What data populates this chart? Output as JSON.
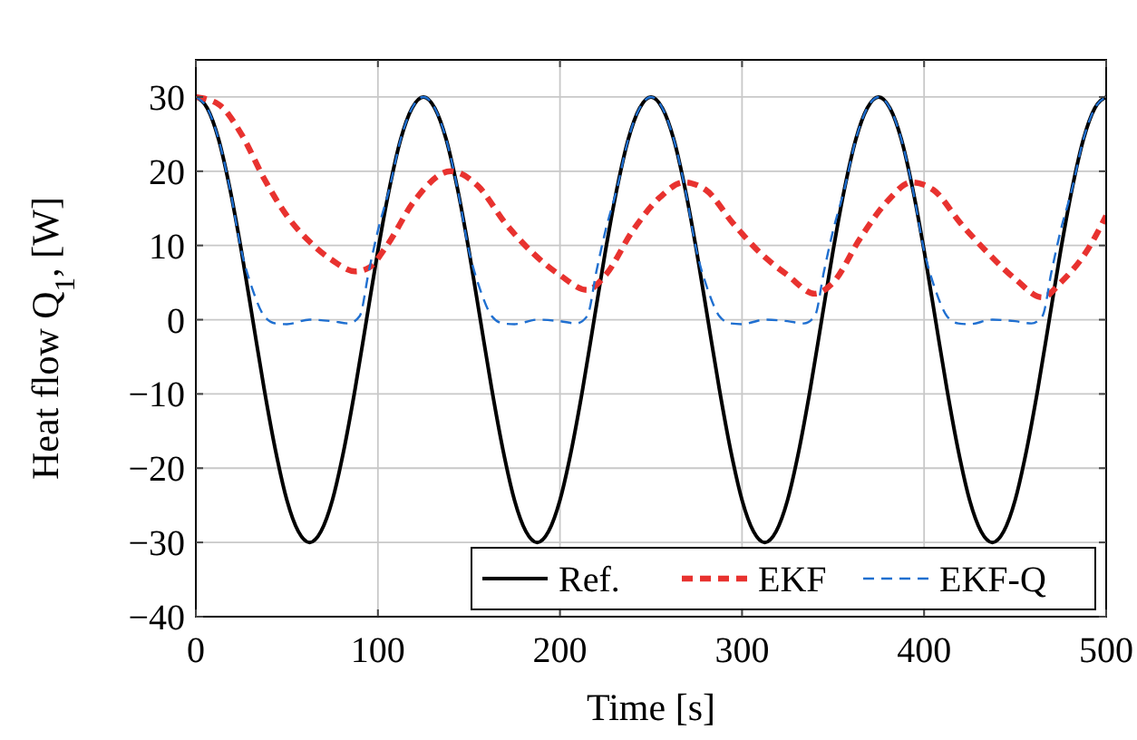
{
  "chart_data": {
    "type": "line",
    "xlabel": "Time [s]",
    "ylabel": "Heat flow Q$_{1}$, [W]",
    "xlim": [
      0,
      500
    ],
    "xticks": [
      0,
      100,
      200,
      300,
      400,
      500
    ],
    "ylim": [
      -40,
      35
    ],
    "yticks": [
      {
        "value": -40,
        "label": "−40"
      },
      {
        "value": -30,
        "label": "−30"
      },
      {
        "value": -20,
        "label": "−20"
      },
      {
        "value": -10,
        "label": "−10"
      },
      0,
      10,
      20,
      30
    ],
    "grid": true,
    "legend": "bottom right",
    "series": [
      {
        "name": "Ref.",
        "color": "#000000",
        "line_style": "solid",
        "x": [
          0,
          6.25,
          12.5,
          18.75,
          25,
          31.25,
          37.5,
          43.75,
          50,
          56.25,
          62.5,
          68.75,
          75,
          81.25,
          87.5,
          93.75,
          100,
          106.25,
          112.5,
          118.75,
          125,
          131.25,
          137.5,
          143.75,
          150,
          156.25,
          162.5,
          168.75,
          175,
          181.25,
          187.5,
          193.75,
          200,
          206.25,
          212.5,
          218.75,
          225,
          231.25,
          237.5,
          243.75,
          250,
          256.25,
          262.5,
          268.75,
          275,
          281.25,
          287.5,
          293.75,
          300,
          306.25,
          312.5,
          318.75,
          325,
          331.25,
          337.5,
          343.75,
          350,
          356.25,
          362.5,
          368.75,
          375,
          381.25,
          387.5,
          393.75,
          400,
          406.25,
          412.5,
          418.75,
          425,
          431.25,
          437.5,
          443.75,
          450,
          456.25,
          462.5,
          468.75,
          475,
          481.25,
          487.5,
          493.75,
          500
        ],
        "values": [
          30,
          28.5,
          24.3,
          17.6,
          9.3,
          0,
          -9.3,
          -17.6,
          -24.3,
          -28.5,
          -30,
          -28.5,
          -24.3,
          -17.6,
          -9.3,
          0,
          9.3,
          17.6,
          24.3,
          28.5,
          30,
          28.5,
          24.3,
          17.6,
          9.3,
          0,
          -9.3,
          -17.6,
          -24.3,
          -28.5,
          -30,
          -28.5,
          -24.3,
          -17.6,
          -9.3,
          0,
          9.3,
          17.6,
          24.3,
          28.5,
          30,
          28.5,
          24.3,
          17.6,
          9.3,
          0,
          -9.3,
          -17.6,
          -24.3,
          -28.5,
          -30,
          -28.5,
          -24.3,
          -17.6,
          -9.3,
          0,
          9.3,
          17.6,
          24.3,
          28.5,
          30,
          28.5,
          24.3,
          17.6,
          9.3,
          0,
          -9.3,
          -17.6,
          -24.3,
          -28.5,
          -30,
          -28.5,
          -24.3,
          -17.6,
          -9.3,
          0,
          9.3,
          17.6,
          24.3,
          28.5,
          30
        ]
      },
      {
        "name": "EKF",
        "color": "#e8322f",
        "line_style": "dashed",
        "x": [
          0,
          12.5,
          25,
          37.5,
          50,
          62.5,
          75,
          87.5,
          95,
          105,
          120,
          140,
          155,
          170,
          185,
          200,
          215,
          225,
          240,
          255,
          268,
          280,
          295,
          310,
          325,
          340,
          350,
          365,
          380,
          393,
          405,
          420,
          435,
          450,
          465,
          475,
          490,
          500
        ],
        "values": [
          30,
          29,
          25,
          19,
          14,
          10.5,
          8,
          6.5,
          7,
          10,
          16,
          20,
          18,
          13,
          9,
          6,
          4,
          6,
          12,
          16.5,
          18.5,
          17.5,
          13,
          9,
          6,
          3.5,
          5,
          11,
          16,
          18.5,
          17.5,
          13,
          9,
          5.5,
          3,
          5,
          9.5,
          14
        ]
      },
      {
        "name": "EKF-Q",
        "color": "#1f6fd0",
        "line_style": "dashed",
        "x": [
          0,
          6.25,
          12.5,
          18.75,
          25,
          31.25,
          37.5,
          43.75,
          50,
          62.5,
          75,
          84,
          90,
          95,
          100,
          106.25,
          112.5,
          118.75,
          125,
          131.25,
          137.5,
          143.75,
          150,
          156.25,
          162.5,
          168.75,
          175,
          187.5,
          200,
          209,
          215,
          220,
          225,
          231.25,
          237.5,
          243.75,
          250,
          256.25,
          262.5,
          268.75,
          275,
          281.25,
          287.5,
          293.75,
          300,
          312.5,
          325,
          334,
          340,
          345,
          350,
          356.25,
          362.5,
          368.75,
          375,
          381.25,
          387.5,
          393.75,
          400,
          406.25,
          412.5,
          418.75,
          425,
          437.5,
          450,
          459,
          465,
          470,
          475,
          481.25,
          487.5,
          493.75,
          500
        ],
        "values": [
          30,
          28.5,
          24.3,
          17.6,
          9.3,
          4,
          0.5,
          -0.5,
          -0.6,
          0,
          -0.2,
          -0.5,
          0.5,
          6.5,
          12,
          17.6,
          24.3,
          28.5,
          30,
          28.5,
          24.3,
          17.6,
          9.3,
          4,
          0.5,
          -0.5,
          -0.6,
          0,
          -0.2,
          -0.5,
          0.5,
          6.5,
          12,
          17.6,
          24.3,
          28.5,
          30,
          28.5,
          24.3,
          17.6,
          9.3,
          4,
          0.5,
          -0.5,
          -0.6,
          0,
          -0.2,
          -0.5,
          0.5,
          6.5,
          12,
          17.6,
          24.3,
          28.5,
          30,
          28.5,
          24.3,
          17.6,
          9.3,
          4,
          0.5,
          -0.5,
          -0.6,
          0,
          -0.2,
          -0.5,
          0.5,
          6.5,
          12,
          17.6,
          24.3,
          28.5,
          30
        ]
      }
    ]
  }
}
